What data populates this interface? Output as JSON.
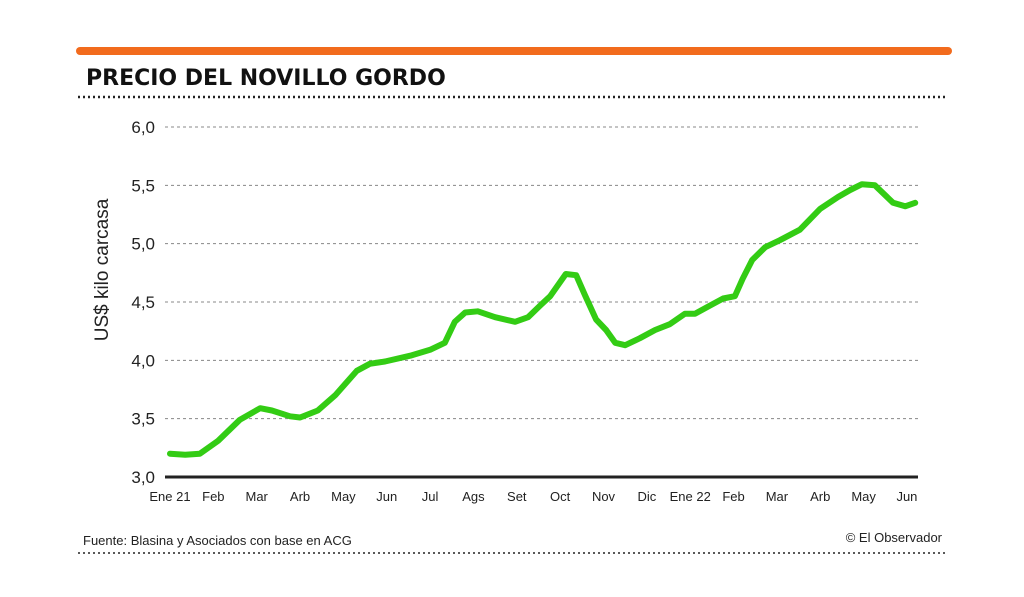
{
  "chart_data": {
    "type": "line",
    "title": "PRECIO DEL NOVILLO GORDO",
    "ylabel": "US$ kilo carcasa",
    "xlabel": "",
    "ylim": [
      3.0,
      6.0
    ],
    "yticks": [
      "3,0",
      "3,5",
      "4,0",
      "4,5",
      "5,0",
      "5,5",
      "6,0"
    ],
    "ytick_values": [
      3.0,
      3.5,
      4.0,
      4.5,
      5.0,
      5.5,
      6.0
    ],
    "categories": [
      "Ene 21",
      "Feb",
      "Mar",
      "Arb",
      "May",
      "Jun",
      "Jul",
      "Ags",
      "Set",
      "Oct",
      "Nov",
      "Dic",
      "Ene 22",
      "Feb",
      "Mar",
      "Arb",
      "May",
      "Jun"
    ],
    "grid": true,
    "series": [
      {
        "name": "Precio novillo gordo",
        "color": "#33cc14",
        "x": [
          0,
          0.35,
          0.69,
          1.11,
          1.61,
          2.08,
          2.35,
          2.77,
          3.0,
          3.41,
          3.81,
          4.31,
          4.61,
          4.96,
          5.54,
          6.0,
          6.34,
          6.57,
          6.81,
          7.1,
          7.5,
          7.96,
          8.26,
          8.54,
          8.77,
          9.13,
          9.37,
          9.57,
          9.83,
          10.06,
          10.27,
          10.5,
          10.84,
          11.19,
          11.53,
          11.88,
          12.11,
          12.46,
          12.76,
          13.03,
          13.21,
          13.43,
          13.73,
          14.07,
          14.53,
          15.0,
          15.41,
          15.69,
          15.96,
          16.26,
          16.68,
          16.96,
          17.19
        ],
        "values": [
          3.2,
          3.19,
          3.2,
          3.31,
          3.49,
          3.59,
          3.57,
          3.52,
          3.51,
          3.57,
          3.7,
          3.91,
          3.97,
          3.99,
          4.04,
          4.09,
          4.15,
          4.33,
          4.41,
          4.42,
          4.37,
          4.33,
          4.37,
          4.47,
          4.55,
          4.74,
          4.73,
          4.56,
          4.35,
          4.26,
          4.15,
          4.13,
          4.19,
          4.26,
          4.31,
          4.4,
          4.4,
          4.47,
          4.53,
          4.55,
          4.7,
          4.86,
          4.97,
          5.03,
          5.12,
          5.3,
          5.4,
          5.46,
          5.51,
          5.5,
          5.35,
          5.32,
          5.35
        ]
      }
    ],
    "accent_color": "#f26b1d"
  },
  "footer": {
    "source": "Fuente: Blasina y Asociados con base en  ACG",
    "credit": "© El Observador"
  }
}
